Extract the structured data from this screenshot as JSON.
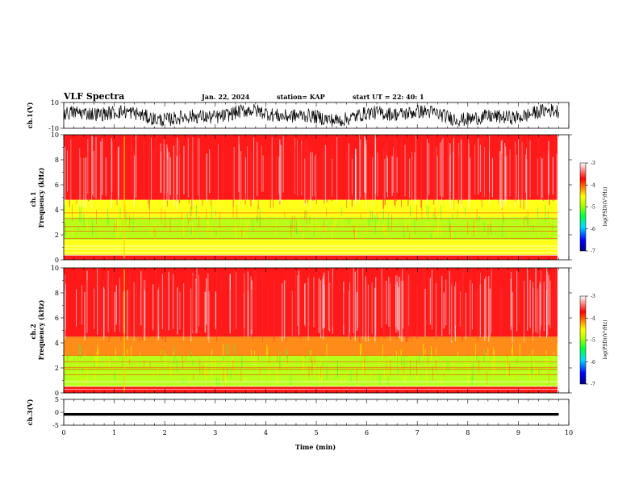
{
  "header": {
    "title": "VLF Spectra",
    "date": "Jan. 22, 2024",
    "station": "station= KAP",
    "start": "start  UT  =   22: 40: 1"
  },
  "colorbar": {
    "label": "log(PSD)(V²/Hz)",
    "ticks": [
      "-3",
      "-4",
      "-5",
      "-6",
      "-7"
    ],
    "colors": [
      "#000080",
      "#0000ff",
      "#00d8ff",
      "#00ff40",
      "#b0ff00",
      "#ffff00",
      "#ff8000",
      "#ff0000",
      "#ffffff"
    ]
  },
  "chart_data": [
    {
      "type": "line",
      "name": "ch1 waveform",
      "ylabel": "ch.1(V)",
      "ylim": [
        -10,
        10
      ],
      "yticks": [
        "10",
        "-10"
      ],
      "description_values": {
        "baseline": 0,
        "amplitude_range": [
          -10,
          10
        ]
      }
    },
    {
      "type": "heatmap",
      "name": "ch1 spectrogram",
      "ylabel": "ch.1",
      "ylabel2": "Frequency  (kHz)",
      "ylim": [
        0,
        10
      ],
      "yticks": [
        "0",
        "2",
        "4",
        "6",
        "8",
        "10"
      ],
      "xlim": [
        0,
        10
      ],
      "bands": [
        {
          "from": 0,
          "to": 0.4,
          "level": -3.6
        },
        {
          "from": 0.4,
          "to": 1.6,
          "level": -4.6
        },
        {
          "from": 1.6,
          "to": 3.4,
          "level": -5.0
        },
        {
          "from": 3.4,
          "to": 4.8,
          "level": -4.3
        },
        {
          "from": 4.8,
          "to": 10,
          "level": -3.7
        }
      ]
    },
    {
      "type": "heatmap",
      "name": "ch2 spectrogram",
      "ylabel": "ch.2",
      "ylabel2": "Frequency  (kHz)",
      "ylim": [
        0,
        10
      ],
      "yticks": [
        "0",
        "2",
        "4",
        "6",
        "8",
        "10"
      ],
      "xlim": [
        0,
        10
      ],
      "bands": [
        {
          "from": 0,
          "to": 0.5,
          "level": -3.6
        },
        {
          "from": 0.5,
          "to": 3.0,
          "level": -5.1
        },
        {
          "from": 3.0,
          "to": 4.5,
          "level": -4.2
        },
        {
          "from": 4.5,
          "to": 10,
          "level": -3.6
        }
      ]
    },
    {
      "type": "line",
      "name": "ch3 waveform",
      "ylabel": "ch.3(V)",
      "ylim": [
        -5,
        5
      ],
      "yticks": [
        "5",
        "0",
        "-5"
      ],
      "xlabel": "Time  (min)",
      "xlim": [
        0,
        10
      ],
      "xticks": [
        "0",
        "1",
        "2",
        "3",
        "4",
        "5",
        "6",
        "7",
        "8",
        "9",
        "10"
      ],
      "description_values": {
        "baseline": -0.8,
        "amplitude_range": [
          -1.3,
          -0.3
        ]
      }
    }
  ]
}
